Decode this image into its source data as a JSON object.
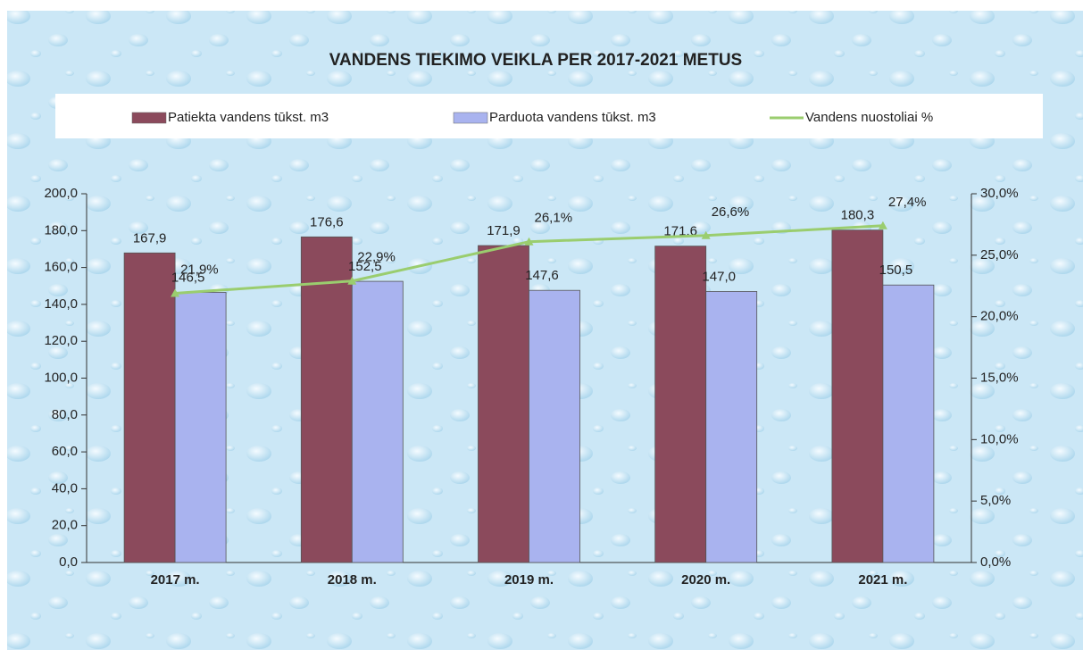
{
  "chart_data": {
    "type": "bar_line",
    "title": "VANDENS TIEKIMO VEIKLA PER 2017-2021 METUS",
    "categories": [
      "2017 m.",
      "2018 m.",
      "2019 m.",
      "2020 m.",
      "2021 m."
    ],
    "series": [
      {
        "name": "Patiekta vandens tūkst. m3",
        "color": "#8b4a5c",
        "type": "bar",
        "values": [
          167.9,
          176.6,
          171.9,
          171.6,
          180.3
        ],
        "value_labels": [
          "167,9",
          "176,6",
          "171,9",
          "171,6",
          "180,3"
        ]
      },
      {
        "name": "Parduota vandens tūkst. m3",
        "color": "#a9b3ef",
        "type": "bar",
        "values": [
          146.5,
          152.5,
          147.6,
          147.0,
          150.5
        ],
        "value_labels": [
          "146,5",
          "152,5",
          "147,6",
          "147,0",
          "150,5"
        ]
      },
      {
        "name": "Vandens nuostoliai %",
        "color": "#9acd6e",
        "type": "line",
        "axis": "y2",
        "values": [
          21.9,
          22.9,
          26.1,
          26.6,
          27.4
        ],
        "value_labels": [
          "21,9%",
          "22,9%",
          "26,1%",
          "26,6%",
          "27,4%"
        ]
      }
    ],
    "ylim": [
      0,
      200
    ],
    "yticks": [
      {
        "value": 0,
        "label": "0,0"
      },
      {
        "value": 20,
        "label": "20,0"
      },
      {
        "value": 40,
        "label": "40,0"
      },
      {
        "value": 60,
        "label": "60,0"
      },
      {
        "value": 80,
        "label": "80,0"
      },
      {
        "value": 100,
        "label": "100,0"
      },
      {
        "value": 120,
        "label": "120,0"
      },
      {
        "value": 140,
        "label": "140,0"
      },
      {
        "value": 160,
        "label": "160,0"
      },
      {
        "value": 180,
        "label": "180,0"
      },
      {
        "value": 200,
        "label": "200,0"
      }
    ],
    "y2lim": [
      0,
      30
    ],
    "y2ticks": [
      {
        "value": 0,
        "label": "0,0%"
      },
      {
        "value": 5,
        "label": "5,0%"
      },
      {
        "value": 10,
        "label": "10,0%"
      },
      {
        "value": 15,
        "label": "15,0%"
      },
      {
        "value": 20,
        "label": "20,0%"
      },
      {
        "value": 25,
        "label": "25,0%"
      },
      {
        "value": 30,
        "label": "30,0%"
      }
    ],
    "legend": "top"
  }
}
